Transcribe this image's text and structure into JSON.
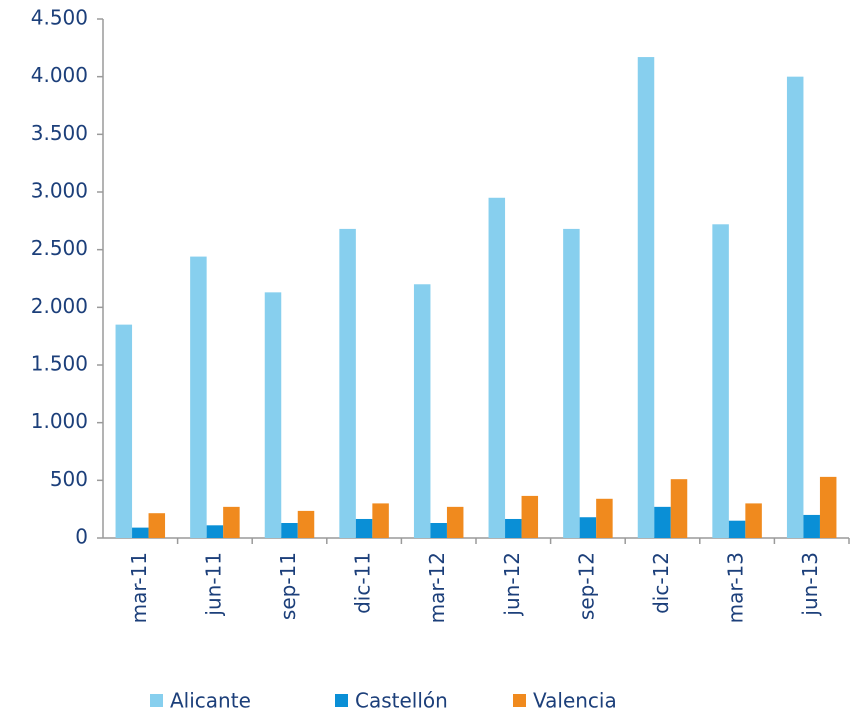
{
  "chart_data": {
    "type": "bar",
    "categories": [
      "mar-11",
      "jun-11",
      "sep-11",
      "dic-11",
      "mar-12",
      "jun-12",
      "sep-12",
      "dic-12",
      "mar-13",
      "jun-13"
    ],
    "series": [
      {
        "name": "Alicante",
        "color": "#87cfee",
        "values": [
          1850,
          2440,
          2130,
          2680,
          2200,
          2950,
          2680,
          4170,
          2720,
          4000
        ]
      },
      {
        "name": "Castellón",
        "color": "#0a8fd6",
        "values": [
          90,
          110,
          130,
          165,
          130,
          165,
          180,
          270,
          150,
          200
        ]
      },
      {
        "name": "Valencia",
        "color": "#f08a1e",
        "values": [
          215,
          270,
          235,
          300,
          270,
          365,
          340,
          510,
          300,
          530
        ]
      }
    ],
    "ylim": [
      0,
      4500
    ],
    "yticks": [
      0,
      500,
      {
        "value": 1000,
        "label": "1.000"
      },
      {
        "value": 1500,
        "label": "1.500"
      },
      {
        "value": 2000,
        "label": "2.000"
      },
      {
        "value": 2500,
        "label": "2.500"
      },
      {
        "value": 3000,
        "label": "3.000"
      },
      {
        "value": 3500,
        "label": "3.500"
      },
      {
        "value": 4000,
        "label": "4.000"
      },
      {
        "value": 4500,
        "label": "4.500"
      }
    ],
    "grid": false,
    "legend": "bottom"
  }
}
